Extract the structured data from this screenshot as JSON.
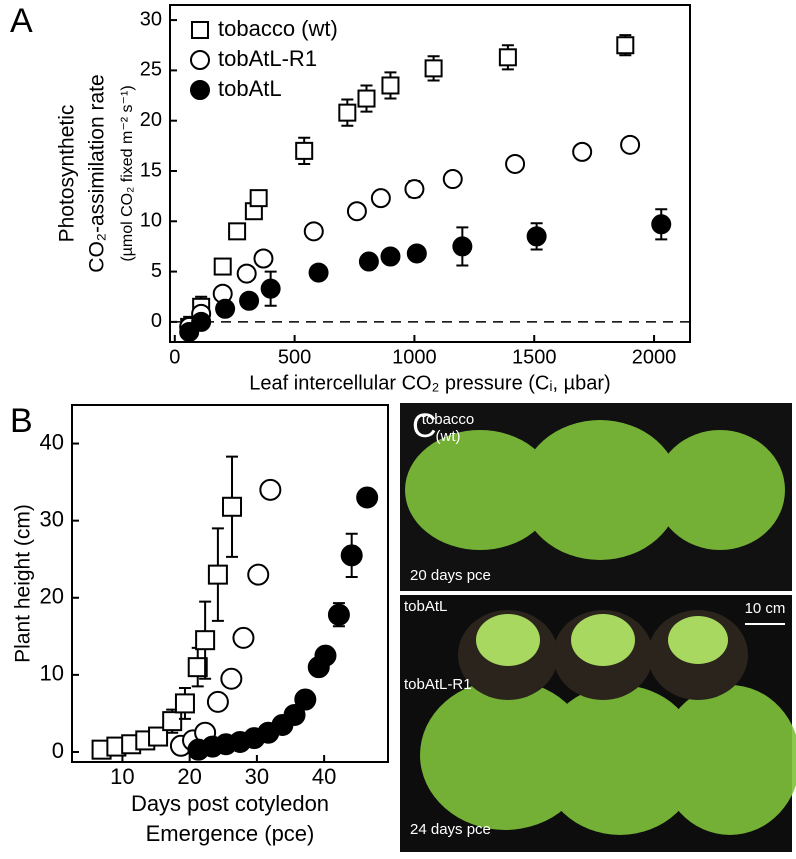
{
  "chart_data": [
    {
      "type": "scatter",
      "panel_label": "A",
      "y_label": [
        "Photosynthetic",
        "CO₂-assimilation rate",
        "(µmol CO₂ fixed m⁻² s⁻¹)"
      ],
      "x_label": "Leaf intercellular CO₂ pressure (Cᵢ, µbar)",
      "xlim": [
        -20,
        2150
      ],
      "ylim": [
        -2,
        31.5
      ],
      "xticks": [
        0,
        500,
        1000,
        1500,
        2000
      ],
      "yticks": [
        0,
        5,
        10,
        15,
        20,
        25,
        30
      ],
      "zero_line": true,
      "legend": "upper left",
      "series": [
        {
          "name": "tobacco (wt)",
          "marker": "square",
          "color": "#ffffff",
          "x": [
            60,
            110,
            200,
            260,
            330,
            350,
            540,
            720,
            800,
            900,
            1080,
            1390,
            1880
          ],
          "values": [
            -0.5,
            1.5,
            5.5,
            9,
            11,
            12.3,
            17,
            20.8,
            22.2,
            23.5,
            25.2,
            26.3,
            27.5
          ],
          "errors": [
            1,
            1,
            0.5,
            0.5,
            0.7,
            0.6,
            1.3,
            1.3,
            1.3,
            1.3,
            1.2,
            1.2,
            1
          ]
        },
        {
          "name": "tobAtL-R1",
          "marker": "circle",
          "color": "#ffffff",
          "x": [
            60,
            110,
            200,
            300,
            370,
            580,
            760,
            860,
            1000,
            1160,
            1420,
            1700,
            1900
          ],
          "values": [
            -0.5,
            0.8,
            2.8,
            4.8,
            6.3,
            9,
            11,
            12.3,
            13.2,
            14.2,
            15.7,
            16.9,
            17.6
          ],
          "errors": [
            0.5,
            0.5,
            0.5,
            0.5,
            0.6,
            0.6,
            0.5,
            0.6,
            0.8,
            0.6,
            0.5,
            0.5,
            0.6
          ]
        },
        {
          "name": "tobAtL",
          "marker": "circle",
          "color": "#000000",
          "x": [
            60,
            110,
            210,
            310,
            400,
            600,
            810,
            900,
            1010,
            1200,
            1510,
            2030
          ],
          "values": [
            -1,
            0,
            1.3,
            2.1,
            3.3,
            4.9,
            6,
            6.5,
            6.8,
            7.5,
            8.5,
            9.7
          ],
          "errors": [
            0.5,
            0.5,
            0.5,
            0.5,
            1.7,
            0.5,
            0.5,
            0.5,
            0.5,
            1.9,
            1.3,
            1.5
          ]
        }
      ]
    },
    {
      "type": "scatter",
      "panel_label": "B",
      "y_label": [
        "Plant height (cm)"
      ],
      "x_label": [
        "Days post cotyledon",
        "Emergence (pce)"
      ],
      "xlim": [
        2.5,
        49.5
      ],
      "ylim": [
        -1.3,
        45
      ],
      "xticks": [
        10,
        20,
        30,
        40
      ],
      "yticks": [
        0,
        10,
        20,
        30,
        40
      ],
      "series": [
        {
          "marker": "square",
          "color": "#ffffff",
          "x": [
            6.9,
            9.1,
            11.3,
            13.4,
            15.3,
            17.4,
            19.3,
            21.2,
            22.3,
            24.2,
            26.3
          ],
          "values": [
            0.3,
            0.7,
            1,
            1.5,
            2,
            4,
            6.3,
            11,
            14.5,
            23,
            31.8
          ],
          "errors": [
            0.3,
            0.5,
            0.5,
            0.5,
            0.7,
            1.5,
            2,
            2.5,
            5,
            6,
            6.5
          ]
        },
        {
          "marker": "circle",
          "color": "#ffffff",
          "x": [
            18.7,
            20.5,
            22.3,
            24.2,
            26.2,
            28,
            30.2,
            32
          ],
          "values": [
            0.8,
            1.5,
            2.5,
            6.5,
            9.5,
            14.8,
            23,
            34
          ],
          "errors": [
            0.3,
            0.3,
            0.6,
            0.9,
            0.8,
            0.9,
            0.6,
            1
          ]
        },
        {
          "marker": "circle",
          "color": "#000000",
          "x": [
            21.3,
            23.4,
            25.4,
            27.5,
            29.6,
            31.7,
            33.8,
            35.6,
            37.2,
            39.2,
            40.2,
            42.2,
            44.1,
            46.4
          ],
          "values": [
            0.3,
            0.7,
            1,
            1.3,
            1.8,
            2.5,
            3.5,
            4.8,
            6.8,
            11,
            12.5,
            17.8,
            25.5,
            33
          ],
          "errors": [
            0.3,
            0.3,
            0.3,
            0.3,
            0.3,
            0.4,
            0.4,
            0.5,
            0.6,
            1,
            1,
            1.5,
            2.8,
            1
          ]
        }
      ]
    }
  ],
  "photo": {
    "panel_label": "C",
    "top_label": [
      "tobacco",
      "(wt)"
    ],
    "top_caption": "20 days pce",
    "label_atl": "tobAtL",
    "scale_bar": "10 cm",
    "label_atl_r1": "tobAtL-R1",
    "bottom_caption": "24 days pce"
  }
}
